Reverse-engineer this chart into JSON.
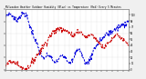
{
  "title": "Milwaukee Weather Outdoor Humidity (Blue) vs Temperature (Red) Every 5 Minutes",
  "title_fontsize": 2.0,
  "bg_color": "#f0f0f0",
  "plot_bg_color": "#ffffff",
  "grid_color": "#c0c0c0",
  "blue_color": "#0000dd",
  "red_color": "#cc0000",
  "n_points": 288,
  "ylim_left": [
    0,
    100
  ],
  "ylim_right": [
    0,
    110
  ],
  "linewidth": 0.7,
  "right_axis_labels": [
    "1",
    "2",
    "3",
    "4",
    "5",
    "6",
    "7",
    "8",
    "9"
  ],
  "figsize": [
    1.6,
    0.87
  ],
  "dpi": 100
}
